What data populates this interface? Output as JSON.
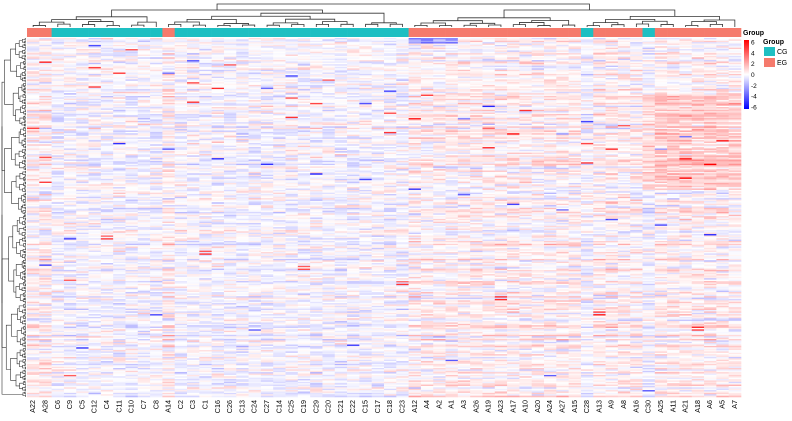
{
  "chart_data": {
    "type": "heatmap",
    "title": "",
    "columns": [
      "A22",
      "A28",
      "C6",
      "C9",
      "C5",
      "C12",
      "C4",
      "C11",
      "C10",
      "C7",
      "C8",
      "A14",
      "C2",
      "C3",
      "C1",
      "C16",
      "C26",
      "C13",
      "C24",
      "C27",
      "C14",
      "C25",
      "C19",
      "C29",
      "C20",
      "C21",
      "C22",
      "C15",
      "C17",
      "C18",
      "C23",
      "A12",
      "A4",
      "A2",
      "A1",
      "A3",
      "A26",
      "A19",
      "A23",
      "A17",
      "A10",
      "A20",
      "A24",
      "A27",
      "A15",
      "C28",
      "A13",
      "A9",
      "A8",
      "A16",
      "C30",
      "A25",
      "A11",
      "A21",
      "A18",
      "A6",
      "A5",
      "A7"
    ],
    "column_groups": [
      "EG",
      "EG",
      "CG",
      "CG",
      "CG",
      "CG",
      "CG",
      "CG",
      "CG",
      "CG",
      "CG",
      "EG",
      "CG",
      "CG",
      "CG",
      "CG",
      "CG",
      "CG",
      "CG",
      "CG",
      "CG",
      "CG",
      "CG",
      "CG",
      "CG",
      "CG",
      "CG",
      "CG",
      "CG",
      "CG",
      "CG",
      "EG",
      "EG",
      "EG",
      "EG",
      "EG",
      "EG",
      "EG",
      "EG",
      "EG",
      "EG",
      "EG",
      "EG",
      "EG",
      "EG",
      "CG",
      "EG",
      "EG",
      "EG",
      "EG",
      "CG",
      "EG",
      "EG",
      "EG",
      "EG",
      "EG",
      "EG",
      "EG"
    ],
    "row_count": 260,
    "color_scale": {
      "min": -6,
      "max": 6,
      "ticks": [
        6,
        4,
        2,
        0,
        -2,
        -4,
        -6
      ],
      "low_color": "#0000ff",
      "mid_color": "#ffffff",
      "high_color": "#ff0000"
    },
    "legends": {
      "group_title": "Group",
      "scale_title": "Group",
      "groups": [
        {
          "name": "CG",
          "color": "#1ebfc2"
        },
        {
          "name": "EG",
          "color": "#f57a6c"
        }
      ]
    },
    "row_dendrogram": true,
    "column_dendrogram": true
  }
}
